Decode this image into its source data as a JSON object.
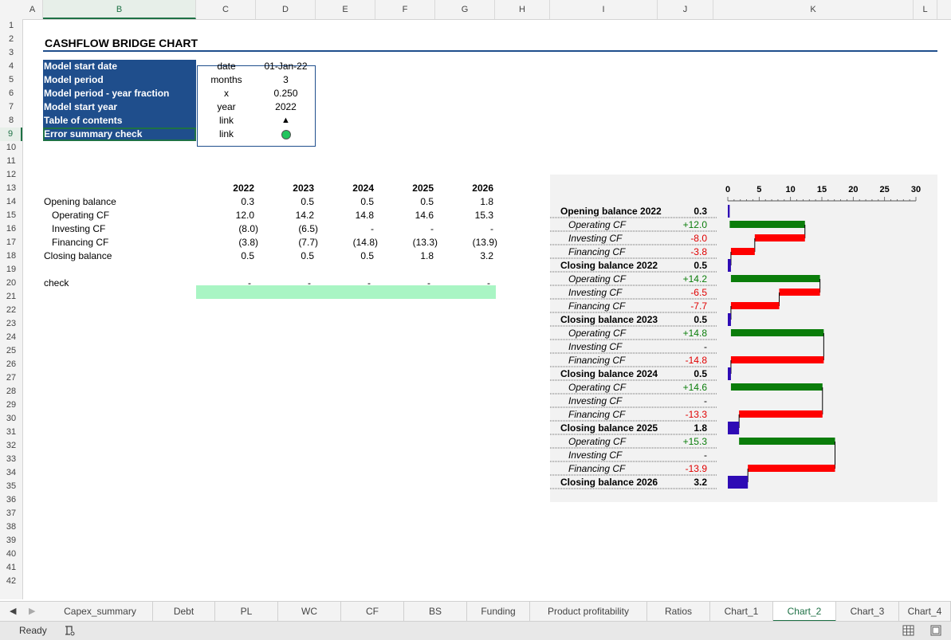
{
  "columns": [
    "A",
    "B",
    "C",
    "D",
    "E",
    "F",
    "G",
    "H",
    "I",
    "J",
    "K",
    "L"
  ],
  "selected_column": "B",
  "rows": [
    "1",
    "2",
    "3",
    "4",
    "5",
    "6",
    "7",
    "8",
    "9",
    "10",
    "11",
    "12",
    "13",
    "14",
    "15",
    "16",
    "17",
    "18",
    "19",
    "20",
    "21",
    "22",
    "23",
    "24",
    "25",
    "26",
    "27",
    "28",
    "29",
    "30",
    "31",
    "32",
    "33",
    "34",
    "35",
    "36",
    "37",
    "38",
    "39",
    "40",
    "41",
    "42"
  ],
  "selected_row": "9",
  "title": "CASHFLOW BRIDGE CHART",
  "info_table": [
    {
      "label": "Model start date",
      "unit": "date",
      "value": "01-Jan-22"
    },
    {
      "label": "Model period",
      "unit": "months",
      "value": "3"
    },
    {
      "label": "Model period - year fraction",
      "unit": "x",
      "value": "0.250"
    },
    {
      "label": "Model start year",
      "unit": "year",
      "value": "2022"
    },
    {
      "label": "Table of contents",
      "unit": "link",
      "value": ""
    },
    {
      "label": "Error summary check",
      "unit": "link",
      "value": ""
    }
  ],
  "info_icons": {
    "toc": "triangle-up-icon",
    "error": "green-circle-icon",
    "error_color": "#22c55e"
  },
  "years": [
    "2022",
    "2023",
    "2024",
    "2025",
    "2026"
  ],
  "cf_rows": [
    {
      "label": "Opening balance",
      "values": [
        "0.3",
        "0.5",
        "0.5",
        "0.5",
        "1.8"
      ]
    },
    {
      "label": "Operating CF",
      "values": [
        "12.0",
        "14.2",
        "14.8",
        "14.6",
        "15.3"
      ]
    },
    {
      "label": "Investing CF",
      "values": [
        "(8.0)",
        "(6.5)",
        "-",
        "-",
        "-"
      ]
    },
    {
      "label": "Financing CF",
      "values": [
        "(3.8)",
        "(7.7)",
        "(14.8)",
        "(13.3)",
        "(13.9)"
      ]
    },
    {
      "label": "Closing balance",
      "values": [
        "0.5",
        "0.5",
        "0.5",
        "1.8",
        "3.2"
      ]
    }
  ],
  "check": {
    "label": "check",
    "values": [
      "-",
      "-",
      "-",
      "-",
      "-"
    ]
  },
  "chart_data": {
    "type": "bar",
    "orientation": "horizontal-waterfall",
    "xlim": [
      0,
      30
    ],
    "ticks": [
      "0",
      "5",
      "10",
      "15",
      "20",
      "25",
      "30"
    ],
    "colors": {
      "balance": "#2e0bb5",
      "positive": "#0a7d0a",
      "negative": "#ff0000"
    },
    "items": [
      {
        "label": "Opening balance 2022",
        "value_text": "0.3",
        "kind": "balance",
        "start": 0,
        "end": 0.3
      },
      {
        "label": "Operating CF",
        "value_text": "+12.0",
        "kind": "positive",
        "start": 0.3,
        "end": 12.3
      },
      {
        "label": "Investing CF",
        "value_text": "-8.0",
        "kind": "negative",
        "start": 4.3,
        "end": 12.3
      },
      {
        "label": "Financing CF",
        "value_text": "-3.8",
        "kind": "negative",
        "start": 0.5,
        "end": 4.3
      },
      {
        "label": "Closing balance 2022",
        "value_text": "0.5",
        "kind": "balance",
        "start": 0,
        "end": 0.5
      },
      {
        "label": "Operating CF",
        "value_text": "+14.2",
        "kind": "positive",
        "start": 0.5,
        "end": 14.7
      },
      {
        "label": "Investing CF",
        "value_text": "-6.5",
        "kind": "negative",
        "start": 8.2,
        "end": 14.7
      },
      {
        "label": "Financing CF",
        "value_text": "-7.7",
        "kind": "negative",
        "start": 0.5,
        "end": 8.2
      },
      {
        "label": "Closing balance 2023",
        "value_text": "0.5",
        "kind": "balance",
        "start": 0,
        "end": 0.5
      },
      {
        "label": "Operating CF",
        "value_text": "+14.8",
        "kind": "positive",
        "start": 0.5,
        "end": 15.3
      },
      {
        "label": "Investing CF",
        "value_text": "-",
        "kind": "none",
        "start": 15.3,
        "end": 15.3
      },
      {
        "label": "Financing CF",
        "value_text": "-14.8",
        "kind": "negative",
        "start": 0.5,
        "end": 15.3
      },
      {
        "label": "Closing balance 2024",
        "value_text": "0.5",
        "kind": "balance",
        "start": 0,
        "end": 0.5
      },
      {
        "label": "Operating CF",
        "value_text": "+14.6",
        "kind": "positive",
        "start": 0.5,
        "end": 15.1
      },
      {
        "label": "Investing CF",
        "value_text": "-",
        "kind": "none",
        "start": 15.1,
        "end": 15.1
      },
      {
        "label": "Financing CF",
        "value_text": "-13.3",
        "kind": "negative",
        "start": 1.8,
        "end": 15.1
      },
      {
        "label": "Closing balance 2025",
        "value_text": "1.8",
        "kind": "balance",
        "start": 0,
        "end": 1.8
      },
      {
        "label": "Operating CF",
        "value_text": "+15.3",
        "kind": "positive",
        "start": 1.8,
        "end": 17.1
      },
      {
        "label": "Investing CF",
        "value_text": "-",
        "kind": "none",
        "start": 17.1,
        "end": 17.1
      },
      {
        "label": "Financing CF",
        "value_text": "-13.9",
        "kind": "negative",
        "start": 3.2,
        "end": 17.1
      },
      {
        "label": "Closing balance 2026",
        "value_text": "3.2",
        "kind": "balance",
        "start": 0,
        "end": 3.2
      }
    ]
  },
  "tabs": [
    "Capex_summary",
    "Debt",
    "PL",
    "WC",
    "CF",
    "BS",
    "Funding",
    "Product profitability",
    "Ratios",
    "Chart_1",
    "Chart_2",
    "Chart_3",
    "Chart_4"
  ],
  "active_tab": "Chart_2",
  "status": {
    "ready": "Ready"
  }
}
